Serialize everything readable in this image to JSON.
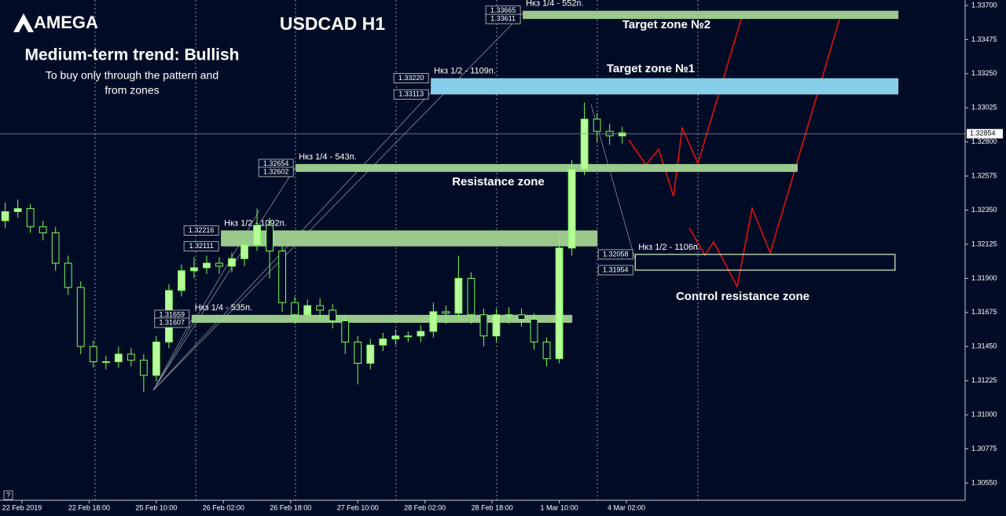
{
  "chart_data": {
    "type": "candlestick",
    "logo": "AMEGA",
    "title": "USDCAD H1",
    "subtitle": "Medium-term trend: Bullish",
    "notes": [
      "To buy only through the pattern  and",
      "from zones"
    ],
    "x": [
      0,
      3,
      6,
      9,
      12,
      15,
      18,
      21,
      24,
      27,
      30,
      33,
      36,
      39,
      42,
      45,
      48,
      51,
      54,
      57,
      60,
      63,
      66,
      69,
      72,
      75,
      78,
      81,
      84,
      87,
      90,
      93,
      96,
      99,
      102,
      105,
      108,
      111,
      114,
      117,
      120,
      123,
      126,
      129,
      132,
      135,
      138,
      141,
      144,
      147
    ],
    "open": [
      1.3228,
      1.3234,
      1.3236,
      1.3224,
      1.322,
      1.32,
      1.3184,
      1.3145,
      1.3135,
      1.3135,
      1.314,
      1.3136,
      1.3126,
      1.3148,
      1.3182,
      1.3195,
      1.3197,
      1.32,
      1.3198,
      1.3203,
      1.3212,
      1.3225,
      1.3208,
      1.3174,
      1.3166,
      1.3172,
      1.3169,
      1.3162,
      1.3148,
      1.3134,
      1.3146,
      1.315,
      1.3152,
      1.3152,
      1.3155,
      1.3168,
      1.3167,
      1.319,
      1.3166,
      1.3152,
      1.3166,
      1.3166,
      1.3163,
      1.3148,
      1.3137,
      1.321,
      1.3262,
      1.3295,
      1.3287,
      1.3284
    ],
    "high": [
      1.324,
      1.3242,
      1.3239,
      1.3228,
      1.3224,
      1.3205,
      1.3188,
      1.3149,
      1.3139,
      1.3145,
      1.3144,
      1.314,
      1.3152,
      1.3186,
      1.3199,
      1.3204,
      1.3205,
      1.3204,
      1.3207,
      1.3217,
      1.3236,
      1.323,
      1.3212,
      1.3178,
      1.3176,
      1.3177,
      1.3173,
      1.3166,
      1.3152,
      1.315,
      1.3154,
      1.3156,
      1.3155,
      1.3159,
      1.3174,
      1.3172,
      1.3205,
      1.3194,
      1.317,
      1.317,
      1.3171,
      1.317,
      1.3167,
      1.3151,
      1.3218,
      1.3268,
      1.3306,
      1.3299,
      1.3292,
      1.329
    ],
    "low": [
      1.3223,
      1.323,
      1.322,
      1.3215,
      1.3195,
      1.3179,
      1.314,
      1.3131,
      1.313,
      1.3131,
      1.3132,
      1.3115,
      1.3122,
      1.3144,
      1.3178,
      1.319,
      1.3193,
      1.3193,
      1.3194,
      1.3198,
      1.3208,
      1.319,
      1.3168,
      1.316,
      1.3162,
      1.3164,
      1.3157,
      1.314,
      1.312,
      1.313,
      1.3142,
      1.3146,
      1.3148,
      1.3148,
      1.3151,
      1.316,
      1.3162,
      1.316,
      1.3145,
      1.3148,
      1.316,
      1.3158,
      1.3143,
      1.3132,
      1.3134,
      1.3205,
      1.3258,
      1.328,
      1.3278,
      1.3279
    ],
    "close": [
      1.3234,
      1.3236,
      1.3224,
      1.322,
      1.32,
      1.3184,
      1.3145,
      1.3135,
      1.3135,
      1.314,
      1.3136,
      1.3126,
      1.3148,
      1.3182,
      1.3195,
      1.3197,
      1.32,
      1.3198,
      1.3203,
      1.3212,
      1.3225,
      1.3208,
      1.3174,
      1.3166,
      1.3172,
      1.3169,
      1.3162,
      1.3148,
      1.3134,
      1.3146,
      1.315,
      1.3152,
      1.3152,
      1.3155,
      1.3168,
      1.3167,
      1.319,
      1.3166,
      1.3152,
      1.3166,
      1.3166,
      1.3163,
      1.3148,
      1.3137,
      1.321,
      1.3262,
      1.3295,
      1.3287,
      1.3284,
      1.3286
    ],
    "up_color": "#b8ff9a",
    "down_color": "#000c26",
    "wick_color": "#7cfc5c",
    "xlim": [
      -1.24,
      228.7
    ],
    "ylim": [
      1.30436,
      1.33736
    ],
    "xticks": [
      {
        "value": 4,
        "label": "22 Feb 2019"
      },
      {
        "value": 20,
        "label": "22 Feb 18:00"
      },
      {
        "value": 36,
        "label": "25 Feb 10:00"
      },
      {
        "value": 52,
        "label": "26 Feb 02:00"
      },
      {
        "value": 68,
        "label": "26 Feb 18:00"
      },
      {
        "value": 84,
        "label": "27 Feb 10:00"
      },
      {
        "value": 100,
        "label": "28 Feb 02:00"
      },
      {
        "value": 116,
        "label": "28 Feb 18:00"
      },
      {
        "value": 132,
        "label": "1 Mar 10:00"
      },
      {
        "value": 148,
        "label": "4 Mar 02:00"
      }
    ],
    "yticks": [
      {
        "value": 1.337,
        "label": "1.33700"
      },
      {
        "value": 1.33475,
        "label": "1.33475"
      },
      {
        "value": 1.3325,
        "label": "1.33250"
      },
      {
        "value": 1.33025,
        "label": "1.33025"
      },
      {
        "value": 1.328,
        "label": "1.32800"
      },
      {
        "value": 1.32575,
        "label": "1.32575"
      },
      {
        "value": 1.3235,
        "label": "1.32350"
      },
      {
        "value": 1.32125,
        "label": "1.32125"
      },
      {
        "value": 1.319,
        "label": "1.31900"
      },
      {
        "value": 1.31675,
        "label": "1.31675"
      },
      {
        "value": 1.3145,
        "label": "1.31450"
      },
      {
        "value": 1.31225,
        "label": "1.31225"
      },
      {
        "value": 1.31,
        "label": "1.31000"
      },
      {
        "value": 1.30775,
        "label": "1.30775"
      },
      {
        "value": 1.3055,
        "label": "1.30550"
      }
    ],
    "current_price": 1.32854,
    "zones": [
      {
        "name": "Target zone №2",
        "label": "Нкз 1/4 - 552п.",
        "top": 1.33665,
        "bottom": 1.33611,
        "x": [
          123.3,
          212.8
        ],
        "color": "#9bc98d",
        "filled": true
      },
      {
        "name": "Target zone №1",
        "label": "Нкз 1/2 - 1109п.",
        "top": {
          "value": 1.3322,
          "label": "1.33220"
        },
        "bottom": 1.33113,
        "x": [
          101.4,
          212.8
        ],
        "color": "#87ceeb",
        "filled": true
      },
      {
        "name": "Resistance zone",
        "label": "Нкз 1/4 - 543п.",
        "top": 1.32654,
        "bottom": 1.32602,
        "x": [
          69.2,
          188.8
        ],
        "color": "#9bc98d",
        "filled": true
      },
      {
        "label": "Нкз 1/2 - 1092п.",
        "top": 1.32216,
        "bottom": 1.32111,
        "x": [
          51.4,
          141.1
        ],
        "color": "#9bc98d",
        "filled": true
      },
      {
        "label": "Нкз 1/4 - 535п.",
        "top": 1.31659,
        "bottom": 1.31607,
        "x": [
          44.4,
          135.1
        ],
        "color": "#9bc98d",
        "filled": true
      },
      {
        "name": "Control resistance zone",
        "label": "Нкз 1/2 - 1106п.",
        "top": 1.32058,
        "bottom": 1.31954,
        "x": [
          150.1,
          212
        ],
        "color": "#d8f5c8",
        "filled": false
      }
    ]
  }
}
